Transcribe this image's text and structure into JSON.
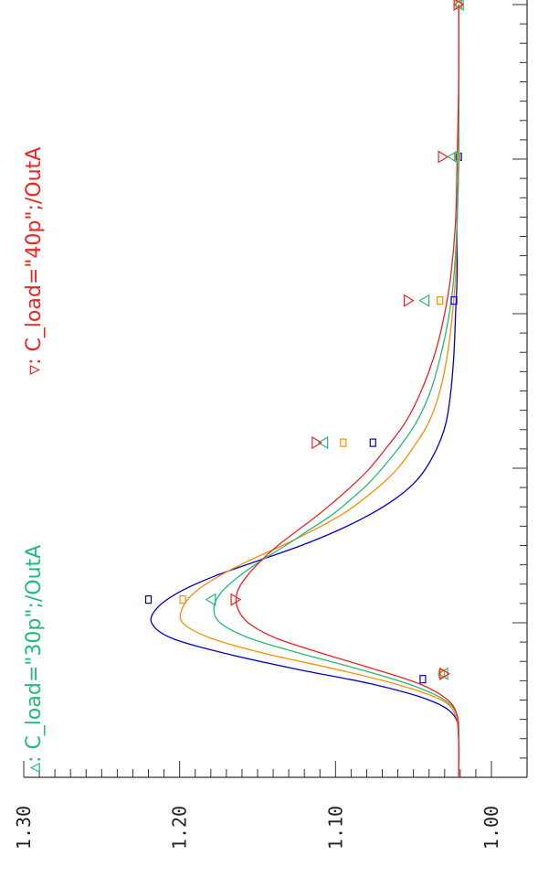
{
  "chart_data": {
    "type": "line",
    "orientation": "rotated-90-clockwise",
    "y_axis": {
      "range": [
        1.0,
        1.3
      ],
      "tick_labels": [
        "1.30",
        "1.20",
        "1.10",
        "1.00"
      ],
      "major_ticks": [
        1.0,
        1.1,
        1.2,
        1.3
      ]
    },
    "x_axis": {
      "range": [
        0,
        1
      ],
      "major_ticks": [
        0.2,
        0.4,
        0.6,
        0.8,
        1.0
      ],
      "tick_labels": []
    },
    "series": [
      {
        "name": "",
        "color": "#0000cc",
        "marker": "rectangle",
        "x": [
          0,
          0.05,
          0.08,
          0.1,
          0.12,
          0.14,
          0.16,
          0.18,
          0.2,
          0.22,
          0.24,
          0.26,
          0.28,
          0.3,
          0.32,
          0.34,
          0.36,
          0.38,
          0.4,
          0.43,
          0.46,
          0.5,
          0.55,
          0.6,
          0.65,
          0.72,
          0.8,
          0.9,
          1.0
        ],
        "values": [
          1.021,
          1.021,
          1.024,
          1.04,
          1.075,
          1.125,
          1.17,
          1.205,
          1.218,
          1.214,
          1.2,
          1.178,
          1.15,
          1.122,
          1.098,
          1.078,
          1.062,
          1.05,
          1.042,
          1.034,
          1.029,
          1.026,
          1.024,
          1.023,
          1.022,
          1.022,
          1.021,
          1.021,
          1.021
        ],
        "marker_x": [
          0.127,
          0.23,
          0.433,
          0.617,
          0.803,
          1.0
        ],
        "marker_values": [
          1.044,
          1.22,
          1.076,
          1.024,
          1.021,
          1.021
        ]
      },
      {
        "name": "",
        "color": "#ff8c00",
        "marker": "rectangle",
        "x": [
          0,
          0.05,
          0.08,
          0.1,
          0.12,
          0.14,
          0.16,
          0.18,
          0.2,
          0.22,
          0.24,
          0.26,
          0.28,
          0.3,
          0.32,
          0.34,
          0.36,
          0.38,
          0.4,
          0.43,
          0.46,
          0.5,
          0.55,
          0.6,
          0.65,
          0.72,
          0.8,
          0.9,
          1.0
        ],
        "values": [
          1.021,
          1.021,
          1.023,
          1.032,
          1.06,
          1.1,
          1.145,
          1.18,
          1.198,
          1.198,
          1.19,
          1.175,
          1.156,
          1.134,
          1.114,
          1.096,
          1.082,
          1.07,
          1.06,
          1.049,
          1.04,
          1.033,
          1.028,
          1.025,
          1.023,
          1.022,
          1.021,
          1.021,
          1.021
        ],
        "marker_x": [
          0.134,
          0.23,
          0.433,
          0.617,
          0.803,
          1.0
        ],
        "marker_values": [
          1.032,
          1.198,
          1.095,
          1.033,
          1.022,
          1.021
        ]
      },
      {
        "name": "C_load=\"30p\";/OutA",
        "color": "#22bb77",
        "marker": "triangle-left",
        "x": [
          0,
          0.05,
          0.08,
          0.1,
          0.12,
          0.14,
          0.16,
          0.18,
          0.2,
          0.22,
          0.24,
          0.26,
          0.28,
          0.3,
          0.32,
          0.34,
          0.36,
          0.38,
          0.4,
          0.43,
          0.46,
          0.5,
          0.55,
          0.6,
          0.65,
          0.72,
          0.8,
          0.9,
          1.0
        ],
        "values": [
          1.021,
          1.021,
          1.022,
          1.03,
          1.052,
          1.085,
          1.122,
          1.155,
          1.174,
          1.178,
          1.173,
          1.162,
          1.148,
          1.132,
          1.117,
          1.102,
          1.09,
          1.079,
          1.07,
          1.058,
          1.048,
          1.039,
          1.032,
          1.027,
          1.024,
          1.022,
          1.021,
          1.021,
          1.021
        ],
        "marker_x": [
          0.134,
          0.23,
          0.433,
          0.617,
          0.803,
          1.0
        ],
        "marker_values": [
          1.031,
          1.18,
          1.108,
          1.043,
          1.025,
          1.021
        ]
      },
      {
        "name": "C_load=\"40p\";/OutA",
        "color": "#ee2222",
        "marker": "triangle-right",
        "x": [
          0,
          0.05,
          0.08,
          0.1,
          0.12,
          0.14,
          0.16,
          0.18,
          0.2,
          0.22,
          0.24,
          0.26,
          0.28,
          0.3,
          0.32,
          0.34,
          0.36,
          0.38,
          0.4,
          0.43,
          0.46,
          0.5,
          0.55,
          0.6,
          0.65,
          0.72,
          0.8,
          0.9,
          1.0
        ],
        "values": [
          1.021,
          1.021,
          1.022,
          1.028,
          1.045,
          1.075,
          1.108,
          1.138,
          1.156,
          1.163,
          1.163,
          1.157,
          1.148,
          1.137,
          1.124,
          1.111,
          1.099,
          1.088,
          1.078,
          1.066,
          1.055,
          1.045,
          1.036,
          1.03,
          1.026,
          1.023,
          1.022,
          1.021,
          1.021
        ],
        "marker_x": [
          0.134,
          0.23,
          0.433,
          0.617,
          0.803,
          1.0
        ],
        "marker_values": [
          1.03,
          1.164,
          1.112,
          1.053,
          1.031,
          1.021
        ]
      }
    ],
    "legend": {
      "placement": "top, rotated",
      "entries": [
        {
          "symbol": "▵:",
          "label": "C_load=\"30p\";/OutA",
          "color": "#22bb77"
        },
        {
          "symbol": "▿:",
          "label": "C_load=\"40p\";/OutA",
          "color": "#ee2222"
        }
      ]
    },
    "grid": false
  }
}
